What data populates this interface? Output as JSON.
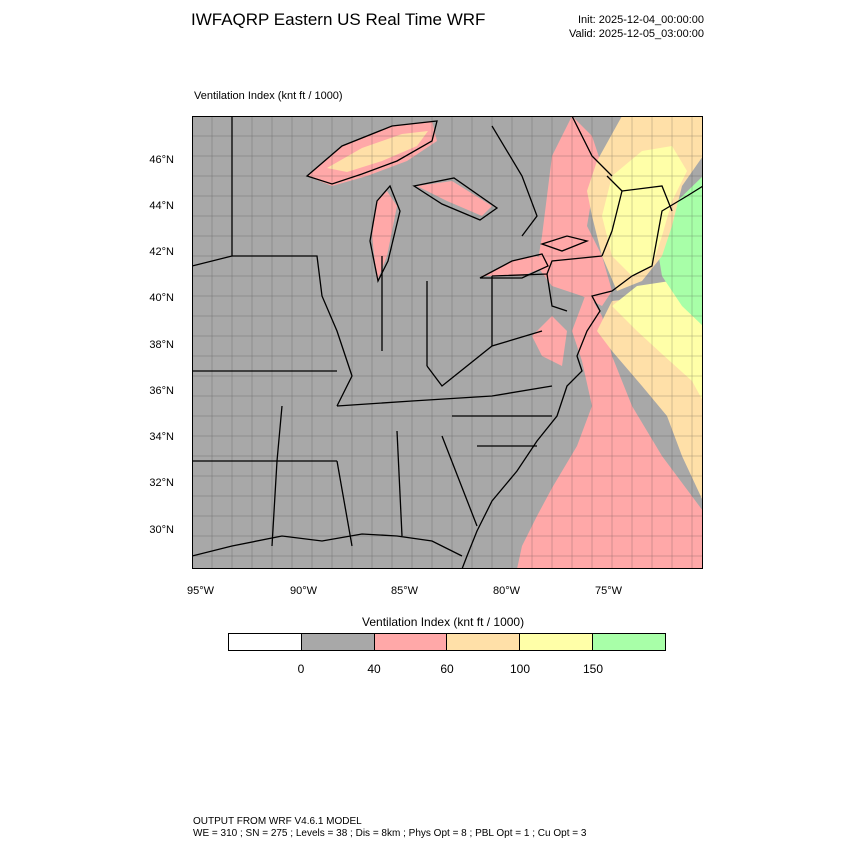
{
  "header": {
    "title": "IWFAQRP Eastern US Real Time WRF",
    "init": "Init: 2025-12-04_00:00:00",
    "valid": "Valid: 2025-12-05_03:00:00"
  },
  "map": {
    "subtitle": "Ventilation Index   (knt ft / 1000)",
    "lat_labels": [
      "46°N",
      "44°N",
      "42°N",
      "40°N",
      "38°N",
      "36°N",
      "34°N",
      "32°N",
      "30°N"
    ],
    "lon_labels": [
      "95°W",
      "90°W",
      "85°W",
      "80°W",
      "75°W"
    ]
  },
  "colorbar": {
    "title": "Ventilation Index  (knt ft / 1000)",
    "colors": [
      "#ffffff",
      "#a8a8a8",
      "#ffa8a8",
      "#ffe0a8",
      "#ffffa8",
      "#a8ffa8"
    ],
    "labels": [
      "0",
      "40",
      "60",
      "100",
      "150"
    ]
  },
  "footer": {
    "line1": "OUTPUT FROM WRF V4.6.1 MODEL",
    "line2": "WE = 310 ; SN = 275 ; Levels = 38 ; Dis = 8km ; Phys Opt = 8 ; PBL Opt = 1 ; Cu Opt = 3"
  }
}
